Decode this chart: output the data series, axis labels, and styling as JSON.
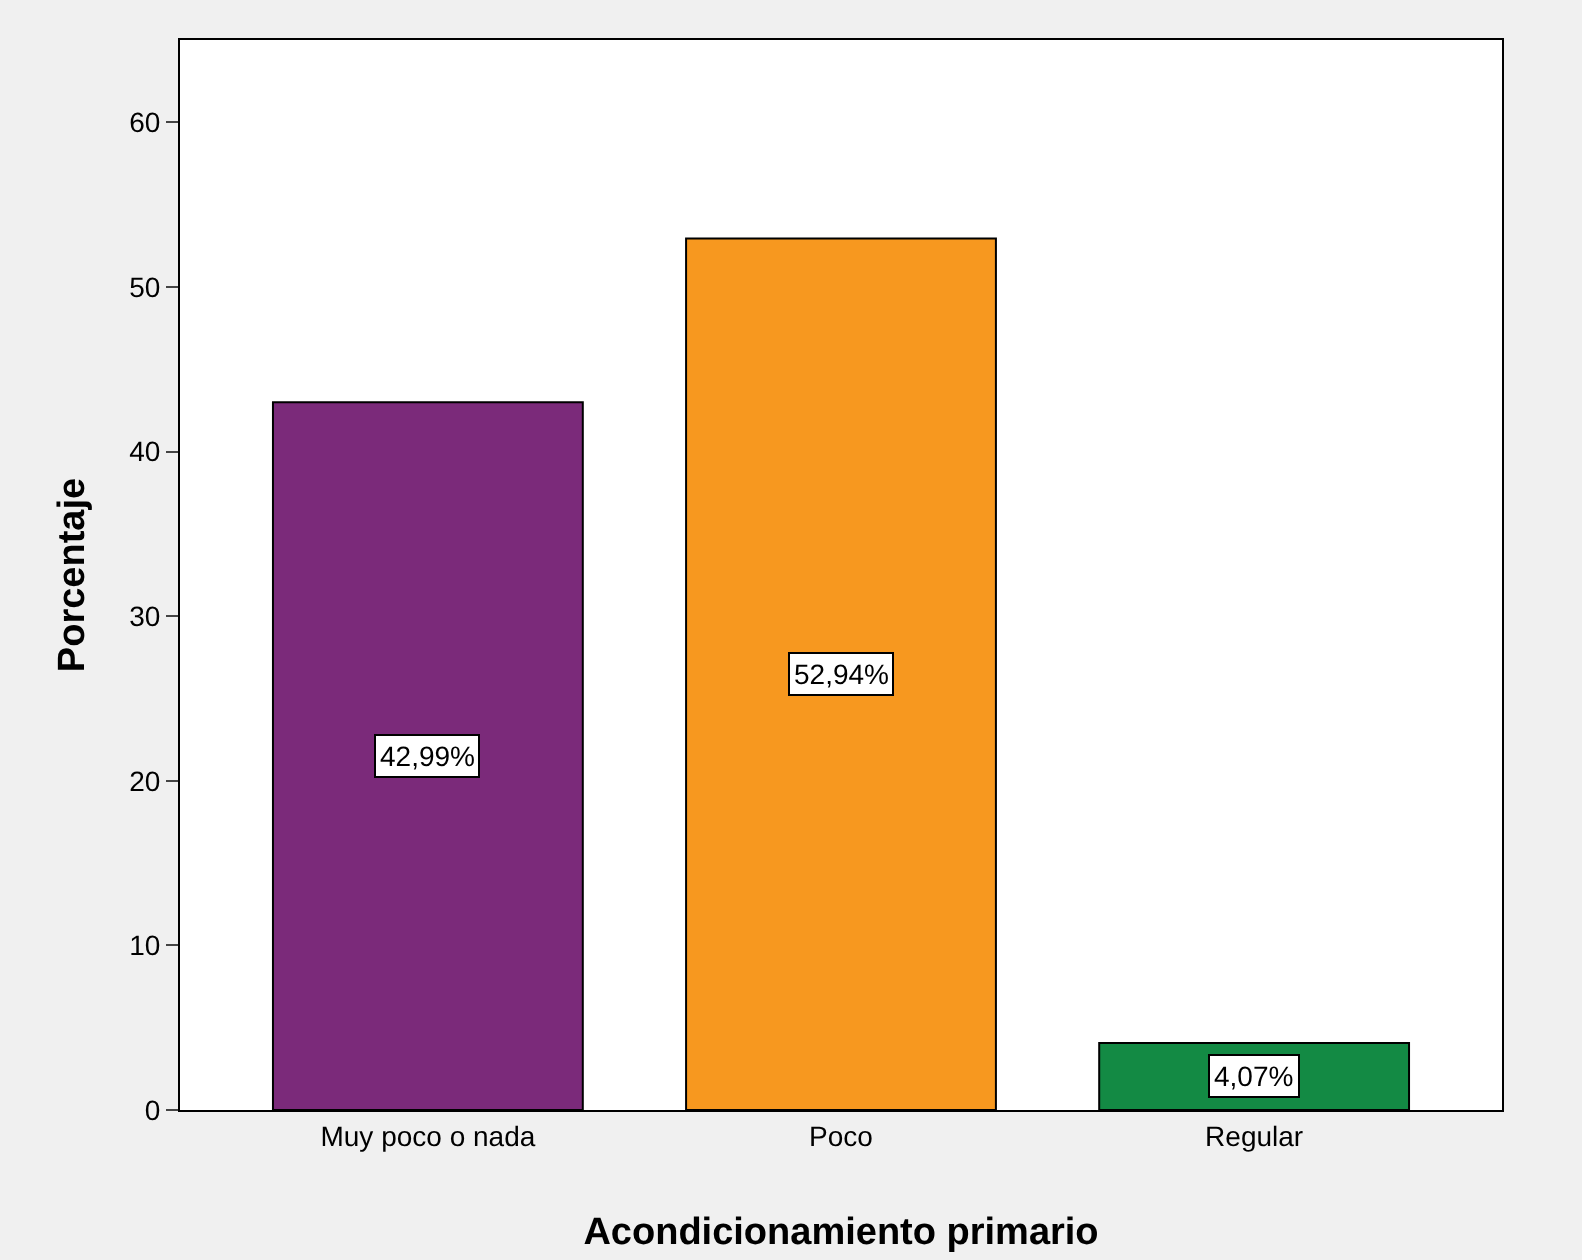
{
  "chart_data": {
    "type": "bar",
    "xlabel": "Acondicionamiento primario",
    "ylabel": "Porcentaje",
    "categories": [
      "Muy poco o nada",
      "Poco",
      "Regular"
    ],
    "values": [
      42.99,
      52.94,
      4.07
    ],
    "colors": [
      "#7b2a7a",
      "#f7981f",
      "#138a44"
    ],
    "value_labels": [
      "42,99%",
      "52,94%",
      "4,07%"
    ],
    "ylim": [
      0,
      65
    ],
    "yticks": [
      0,
      10,
      20,
      30,
      40,
      50,
      60
    ],
    "grid": false
  }
}
